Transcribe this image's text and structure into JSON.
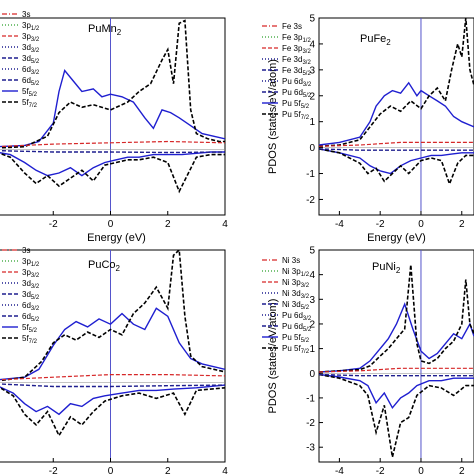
{
  "colors": {
    "s": "#d62728",
    "p12": "#2ca02c",
    "p32": "#d62728",
    "d32": "#1f1f8f",
    "d52": "#1f1f8f",
    "f52": "#1f1fd0",
    "f72": "#000000",
    "fermi": "#5555cc"
  },
  "chart_data": [
    {
      "type": "line",
      "title": "PuMn",
      "title_sub": "2",
      "xlabel": "Energy (eV)",
      "ylabel": "",
      "xlim": [
        -4,
        4
      ],
      "ylim": [
        -2.5,
        5
      ],
      "xticks": [
        "-2",
        "0",
        "2",
        "4"
      ],
      "yticks": [],
      "legend": [
        {
          "label": "3s",
          "sub": "",
          "style": "s"
        },
        {
          "label": "3p",
          "sub": "1/2",
          "style": "p12"
        },
        {
          "label": "3p",
          "sub": "3/2",
          "style": "p32"
        },
        {
          "label": "3d",
          "sub": "3/2",
          "style": "d32"
        },
        {
          "label": "3d",
          "sub": "5/2",
          "style": "d52"
        },
        {
          "label": "6d",
          "sub": "3/2",
          "style": "d32"
        },
        {
          "label": "6d",
          "sub": "5/2",
          "style": "d52"
        },
        {
          "label": "5f",
          "sub": "5/2",
          "style": "f52"
        },
        {
          "label": "5f",
          "sub": "7/2",
          "style": "f72"
        }
      ],
      "series": [
        {
          "style": "f52",
          "x": [
            -4.0,
            -3.0,
            -2.5,
            -2.0,
            -1.8,
            -1.6,
            -1.3,
            -1.0,
            -0.6,
            -0.3,
            0.0,
            0.4,
            0.8,
            1.2,
            1.5,
            1.8,
            2.1,
            2.4,
            2.8,
            3.2,
            4.0
          ],
          "y": [
            0.1,
            0.15,
            0.3,
            1.0,
            2.2,
            3.0,
            2.6,
            2.2,
            2.3,
            2.0,
            2.1,
            2.0,
            1.8,
            1.2,
            0.8,
            1.5,
            1.4,
            1.2,
            0.9,
            0.6,
            0.4
          ]
        },
        {
          "style": "f72",
          "x": [
            -4.0,
            -3.0,
            -2.2,
            -1.8,
            -1.4,
            -1.0,
            -0.6,
            0.0,
            0.6,
            1.0,
            1.4,
            1.8,
            2.0,
            2.2,
            2.4,
            2.6,
            2.8,
            3.0,
            3.4,
            3.8,
            4.0
          ],
          "y": [
            0.05,
            0.1,
            0.5,
            1.4,
            1.8,
            1.6,
            1.7,
            1.5,
            1.8,
            2.2,
            2.5,
            3.4,
            3.8,
            2.5,
            4.8,
            4.9,
            1.5,
            0.6,
            0.4,
            0.3,
            0.3
          ]
        },
        {
          "style": "f52",
          "x": [
            -4.0,
            -3.5,
            -3.0,
            -2.6,
            -2.2,
            -1.8,
            -1.4,
            -1.0,
            -0.6,
            -0.2,
            0.2,
            0.6,
            1.0,
            1.5,
            2.0,
            2.5,
            3.0,
            3.5,
            4.0
          ],
          "y": [
            -0.1,
            -0.2,
            -0.5,
            -0.8,
            -1.0,
            -0.9,
            -0.7,
            -1.0,
            -0.7,
            -0.5,
            -0.4,
            -0.3,
            -0.3,
            -0.2,
            -0.2,
            -0.2,
            -0.15,
            -0.1,
            -0.1
          ]
        },
        {
          "style": "f72",
          "x": [
            -4.0,
            -3.5,
            -3.0,
            -2.6,
            -2.2,
            -1.8,
            -1.4,
            -1.0,
            -0.6,
            -0.2,
            0.2,
            0.6,
            1.0,
            1.5,
            2.0,
            2.4,
            3.0,
            3.5,
            4.0
          ],
          "y": [
            -0.1,
            -0.3,
            -0.9,
            -1.3,
            -1.0,
            -1.4,
            -1.1,
            -0.8,
            -1.2,
            -0.6,
            -0.5,
            -0.4,
            -0.4,
            -0.3,
            -0.5,
            -1.6,
            -0.3,
            -0.2,
            -0.2
          ]
        },
        {
          "style": "p32",
          "x": [
            -4,
            -2,
            0,
            2,
            4
          ],
          "y": [
            0.1,
            0.2,
            0.25,
            0.3,
            0.25
          ]
        },
        {
          "style": "d52",
          "x": [
            -4,
            -2,
            0,
            2,
            4
          ],
          "y": [
            -0.05,
            -0.1,
            -0.1,
            -0.12,
            -0.1
          ]
        }
      ]
    },
    {
      "type": "line",
      "title": "PuFe",
      "title_sub": "2",
      "xlabel": "Energy (eV)",
      "ylabel": "PDOS (states/eV/atom)",
      "xlim": [
        -5,
        2.6
      ],
      "ylim": [
        -2.6,
        5
      ],
      "xticks": [
        "-4",
        "-2",
        "0",
        "2"
      ],
      "yticks": [
        "5",
        "4",
        "3",
        "2",
        "1",
        "0",
        "-1",
        "-2"
      ],
      "legend": [
        {
          "label": "Fe 3s",
          "sub": "",
          "style": "s"
        },
        {
          "label": "Fe 3p",
          "sub": "1/2",
          "style": "p12"
        },
        {
          "label": "Fe 3p",
          "sub": "3/2",
          "style": "p32"
        },
        {
          "label": "Fe 3d",
          "sub": "3/2",
          "style": "d32"
        },
        {
          "label": "Fe 3d",
          "sub": "5/2",
          "style": "d52"
        },
        {
          "label": "Pu 6d",
          "sub": "3/2",
          "style": "d32"
        },
        {
          "label": "Pu 6d",
          "sub": "5/2",
          "style": "d52"
        },
        {
          "label": "Pu 5f",
          "sub": "5/2",
          "style": "f52"
        },
        {
          "label": "Pu 5f",
          "sub": "7/2",
          "style": "f72"
        }
      ],
      "series": [
        {
          "style": "f52",
          "x": [
            -5.0,
            -4.0,
            -3.0,
            -2.5,
            -2.2,
            -1.8,
            -1.4,
            -1.0,
            -0.6,
            -0.2,
            0.0,
            0.4,
            0.8,
            1.2,
            1.6,
            2.0,
            2.6
          ],
          "y": [
            0.1,
            0.2,
            0.4,
            1.0,
            1.6,
            2.0,
            2.2,
            2.1,
            2.5,
            2.0,
            2.2,
            2.0,
            1.8,
            1.6,
            1.2,
            1.0,
            0.8
          ]
        },
        {
          "style": "f72",
          "x": [
            -5.0,
            -4.0,
            -3.0,
            -2.5,
            -2.0,
            -1.5,
            -1.0,
            -0.5,
            0.0,
            0.4,
            0.8,
            1.2,
            1.5,
            1.8,
            2.0,
            2.2,
            2.4,
            2.6
          ],
          "y": [
            0.05,
            0.1,
            0.3,
            0.8,
            1.3,
            1.6,
            1.4,
            1.8,
            1.5,
            2.0,
            2.3,
            1.8,
            3.0,
            4.0,
            3.5,
            5.0,
            3.0,
            2.4
          ]
        },
        {
          "style": "f52",
          "x": [
            -5.0,
            -4.0,
            -3.0,
            -2.5,
            -2.0,
            -1.5,
            -1.0,
            -0.5,
            0.0,
            0.5,
            1.0,
            1.5,
            2.0,
            2.6
          ],
          "y": [
            -0.05,
            -0.2,
            -0.4,
            -0.7,
            -0.9,
            -1.0,
            -0.7,
            -0.5,
            -0.4,
            -0.3,
            -0.3,
            -0.25,
            -0.2,
            -0.2
          ]
        },
        {
          "style": "f72",
          "x": [
            -5.0,
            -4.0,
            -3.0,
            -2.6,
            -2.2,
            -1.8,
            -1.4,
            -1.0,
            -0.6,
            0.0,
            0.5,
            1.0,
            1.4,
            1.8,
            2.2,
            2.6
          ],
          "y": [
            -0.05,
            -0.2,
            -0.6,
            -1.0,
            -0.8,
            -1.3,
            -1.0,
            -0.7,
            -1.0,
            -0.5,
            -0.4,
            -0.5,
            -1.4,
            -0.6,
            -0.3,
            -0.3
          ]
        },
        {
          "style": "p32",
          "x": [
            -5,
            -3,
            -1,
            1,
            2.6
          ],
          "y": [
            0.05,
            0.1,
            0.2,
            0.2,
            0.2
          ]
        },
        {
          "style": "d52",
          "x": [
            -5,
            -3,
            -1,
            1,
            2.6
          ],
          "y": [
            -0.05,
            -0.1,
            -0.1,
            -0.1,
            -0.1
          ]
        }
      ]
    },
    {
      "type": "line",
      "title": "PuCo",
      "title_sub": "2",
      "xlabel": "Energy (eV)",
      "ylabel": "",
      "xlim": [
        -4,
        4
      ],
      "ylim": [
        -3,
        5
      ],
      "xticks": [
        "-2",
        "0",
        "2",
        "4"
      ],
      "yticks": [],
      "legend": [
        {
          "label": "3s",
          "sub": "",
          "style": "s"
        },
        {
          "label": "3p",
          "sub": "1/2",
          "style": "p12"
        },
        {
          "label": "3p",
          "sub": "3/2",
          "style": "p32"
        },
        {
          "label": "3d",
          "sub": "3/2",
          "style": "d32"
        },
        {
          "label": "3d",
          "sub": "5/2",
          "style": "d52"
        },
        {
          "label": "6d",
          "sub": "3/2",
          "style": "d32"
        },
        {
          "label": "6d",
          "sub": "5/2",
          "style": "d52"
        },
        {
          "label": "5f",
          "sub": "5/2",
          "style": "f52"
        },
        {
          "label": "5f",
          "sub": "7/2",
          "style": "f72"
        }
      ],
      "series": [
        {
          "style": "f52",
          "x": [
            -4.0,
            -3.0,
            -2.5,
            -2.0,
            -1.6,
            -1.2,
            -0.8,
            -0.4,
            0.0,
            0.4,
            0.8,
            1.2,
            1.6,
            2.0,
            2.4,
            2.8,
            3.2,
            4.0
          ],
          "y": [
            0.1,
            0.2,
            0.5,
            1.4,
            2.0,
            2.3,
            2.1,
            2.4,
            2.2,
            2.6,
            2.2,
            2.0,
            2.8,
            2.5,
            1.5,
            0.9,
            0.7,
            0.5
          ]
        },
        {
          "style": "f72",
          "x": [
            -4.0,
            -3.0,
            -2.4,
            -2.0,
            -1.6,
            -1.2,
            -0.8,
            -0.4,
            0.0,
            0.4,
            0.8,
            1.2,
            1.6,
            2.0,
            2.2,
            2.4,
            2.6,
            2.8,
            3.2,
            4.0
          ],
          "y": [
            0.05,
            0.2,
            0.8,
            1.5,
            1.8,
            1.6,
            1.9,
            1.7,
            2.0,
            1.8,
            2.6,
            3.0,
            3.6,
            2.8,
            4.8,
            5.0,
            2.5,
            1.0,
            0.6,
            0.4
          ]
        },
        {
          "style": "f52",
          "x": [
            -4.0,
            -3.4,
            -3.0,
            -2.6,
            -2.2,
            -1.8,
            -1.4,
            -1.0,
            -0.6,
            -0.2,
            0.4,
            1.0,
            1.6,
            2.2,
            3.0,
            4.0
          ],
          "y": [
            -0.1,
            -0.4,
            -0.8,
            -1.1,
            -0.9,
            -1.2,
            -0.8,
            -0.9,
            -0.6,
            -0.5,
            -0.4,
            -0.3,
            -0.3,
            -0.25,
            -0.2,
            -0.1
          ]
        },
        {
          "style": "f72",
          "x": [
            -4.0,
            -3.4,
            -3.0,
            -2.6,
            -2.2,
            -1.8,
            -1.4,
            -1.0,
            -0.6,
            -0.2,
            0.4,
            1.0,
            1.6,
            2.2,
            2.6,
            3.0,
            4.0
          ],
          "y": [
            -0.1,
            -0.5,
            -1.2,
            -1.6,
            -1.1,
            -2.0,
            -1.3,
            -1.6,
            -1.1,
            -0.7,
            -0.5,
            -0.4,
            -0.6,
            -0.4,
            -1.2,
            -0.3,
            -0.2
          ]
        },
        {
          "style": "p32",
          "x": [
            -4,
            -2,
            0,
            2,
            4
          ],
          "y": [
            0.1,
            0.2,
            0.3,
            0.3,
            0.25
          ]
        },
        {
          "style": "d52",
          "x": [
            -4,
            -2,
            0,
            2,
            4
          ],
          "y": [
            -0.05,
            -0.15,
            -0.15,
            -0.12,
            -0.1
          ]
        }
      ]
    },
    {
      "type": "line",
      "title": "PuNi",
      "title_sub": "2",
      "xlabel": "Energy (eV)",
      "ylabel": "PDOS (states/eV/atom)",
      "xlim": [
        -5,
        2.6
      ],
      "ylim": [
        -3.6,
        5
      ],
      "xticks": [
        "-4",
        "-2",
        "0",
        "2"
      ],
      "yticks": [
        "5",
        "4",
        "3",
        "2",
        "1",
        "0",
        "-1",
        "-2",
        "-3"
      ],
      "legend": [
        {
          "label": "Ni 3s",
          "sub": "",
          "style": "s"
        },
        {
          "label": "Ni 3p",
          "sub": "1/2",
          "style": "p12"
        },
        {
          "label": "Ni 3p",
          "sub": "3/2",
          "style": "p32"
        },
        {
          "label": "Ni 3d",
          "sub": "3/2",
          "style": "d32"
        },
        {
          "label": "Ni 3d",
          "sub": "5/2",
          "style": "d52"
        },
        {
          "label": "Pu 6d",
          "sub": "3/2",
          "style": "d32"
        },
        {
          "label": "Pu 6d",
          "sub": "5/2",
          "style": "d52"
        },
        {
          "label": "Pu 5f",
          "sub": "5/2",
          "style": "f52"
        },
        {
          "label": "Pu 5f",
          "sub": "7/2",
          "style": "f72"
        }
      ],
      "series": [
        {
          "style": "f52",
          "x": [
            -5.0,
            -4.0,
            -3.0,
            -2.5,
            -2.0,
            -1.6,
            -1.2,
            -0.8,
            -0.4,
            0.0,
            0.4,
            0.8,
            1.2,
            1.6,
            2.0,
            2.4,
            2.6
          ],
          "y": [
            0.05,
            0.1,
            0.2,
            0.5,
            1.0,
            1.4,
            2.0,
            2.8,
            1.8,
            0.9,
            0.6,
            0.8,
            1.2,
            1.6,
            1.4,
            2.0,
            1.5
          ]
        },
        {
          "style": "f72",
          "x": [
            -5.0,
            -4.0,
            -3.0,
            -2.5,
            -2.0,
            -1.6,
            -1.2,
            -0.8,
            -0.5,
            -0.2,
            0.0,
            0.4,
            0.8,
            1.2,
            1.6,
            2.0,
            2.2,
            2.4,
            2.6
          ],
          "y": [
            0.05,
            0.1,
            0.15,
            0.3,
            0.7,
            1.0,
            1.4,
            1.8,
            4.4,
            1.2,
            0.5,
            0.4,
            0.6,
            1.0,
            1.3,
            2.0,
            3.8,
            2.0,
            1.6
          ]
        },
        {
          "style": "f52",
          "x": [
            -5.0,
            -4.0,
            -3.0,
            -2.6,
            -2.2,
            -1.8,
            -1.4,
            -1.0,
            -0.6,
            -0.2,
            0.4,
            1.0,
            1.6,
            2.2,
            2.6
          ],
          "y": [
            -0.05,
            -0.15,
            -0.3,
            -0.5,
            -1.2,
            -0.8,
            -1.4,
            -1.0,
            -0.8,
            -0.5,
            -0.3,
            -0.3,
            -0.2,
            -0.2,
            -0.2
          ]
        },
        {
          "style": "f72",
          "x": [
            -5.0,
            -4.0,
            -3.0,
            -2.6,
            -2.2,
            -1.8,
            -1.4,
            -1.0,
            -0.6,
            -0.2,
            0.4,
            1.0,
            1.6,
            2.2,
            2.6
          ],
          "y": [
            -0.05,
            -0.2,
            -0.5,
            -0.9,
            -2.4,
            -1.3,
            -3.4,
            -2.0,
            -1.8,
            -0.9,
            -0.5,
            -0.6,
            -0.9,
            -0.5,
            -0.5
          ]
        },
        {
          "style": "p32",
          "x": [
            -5,
            -3,
            -1,
            1,
            2.6
          ],
          "y": [
            0.05,
            0.1,
            0.2,
            0.2,
            0.2
          ]
        },
        {
          "style": "d52",
          "x": [
            -5,
            -3,
            -1,
            1,
            2.6
          ],
          "y": [
            -0.05,
            -0.1,
            -0.1,
            -0.1,
            -0.1
          ]
        }
      ]
    }
  ]
}
